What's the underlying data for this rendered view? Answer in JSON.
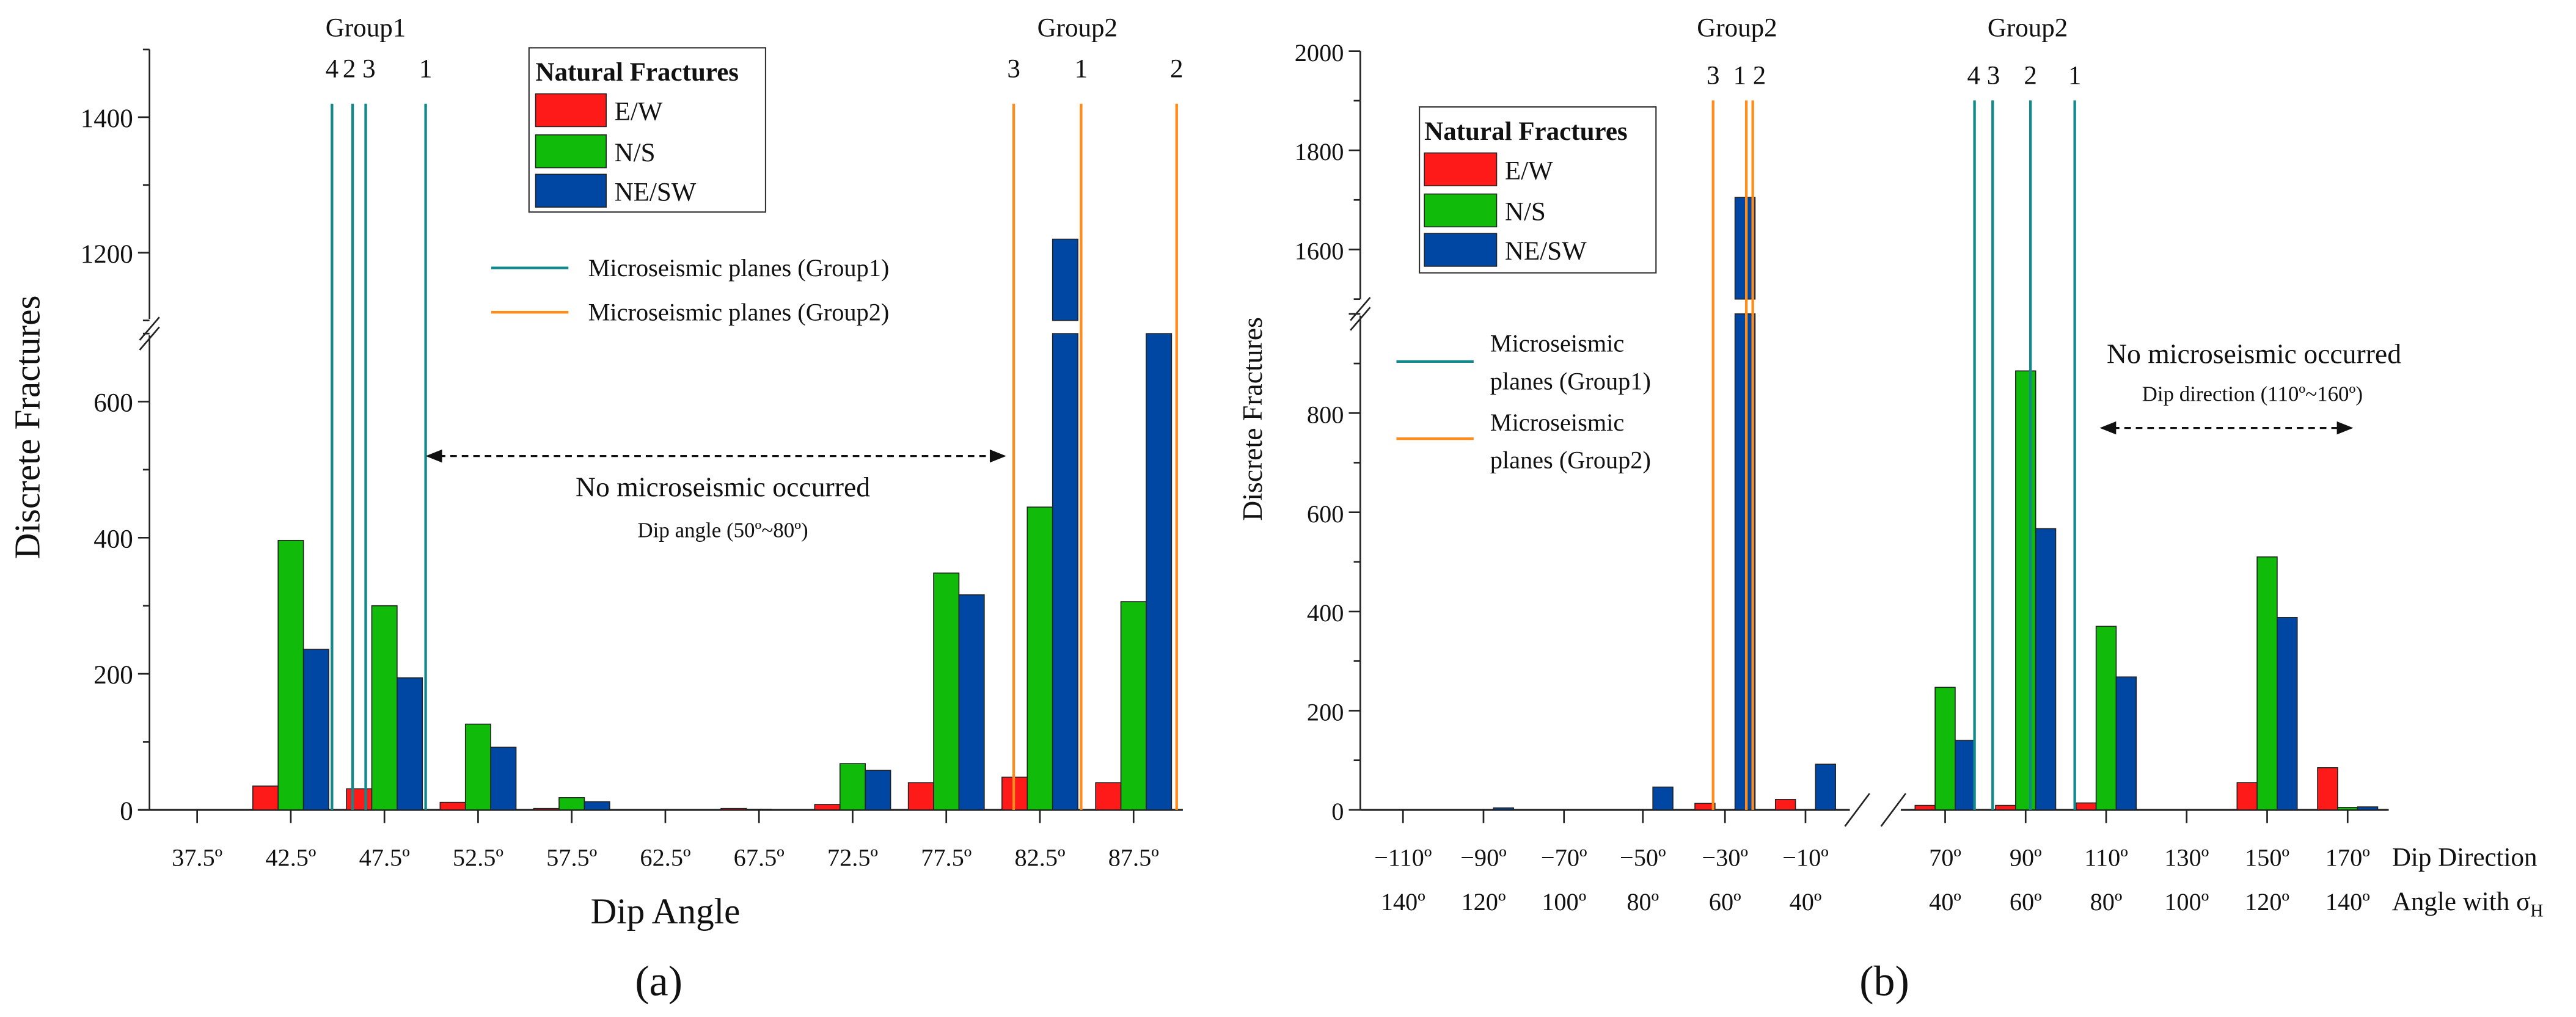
{
  "colors": {
    "ew": "#ff1a1a",
    "ns": "#11bb0a",
    "nesw": "#0047a3",
    "group1": "#128a8c",
    "group2": "#ff8c1a"
  },
  "chart_data": [
    {
      "type": "bar",
      "panel_label": "(a)",
      "xlabel": "Dip Angle",
      "ylabel": "Discrete Fractures",
      "categories": [
        "37.5º",
        "42.5º",
        "47.5º",
        "52.5º",
        "57.5º",
        "62.5º",
        "67.5º",
        "72.5º",
        "77.5º",
        "82.5º",
        "87.5º"
      ],
      "category_values": [
        37.5,
        42.5,
        47.5,
        52.5,
        57.5,
        62.5,
        67.5,
        72.5,
        77.5,
        82.5,
        87.5
      ],
      "ylim": [
        0,
        1500
      ],
      "y_break": [
        700,
        1100
      ],
      "yticks": [
        "0",
        "200",
        "400",
        "600",
        "1200",
        "1400"
      ],
      "ytick_values": [
        0,
        200,
        400,
        600,
        1200,
        1400
      ],
      "series": [
        {
          "name": "E/W",
          "values": [
            0,
            35,
            31,
            11,
            2,
            0,
            2,
            8,
            40,
            48,
            40
          ]
        },
        {
          "name": "N/S",
          "values": [
            0,
            396,
            300,
            126,
            18,
            0,
            1,
            68,
            348,
            445,
            306
          ]
        },
        {
          "name": "NE/SW",
          "values": [
            0,
            236,
            194,
            92,
            12,
            0,
            0,
            58,
            316,
            1220,
            700
          ]
        }
      ],
      "legend_title": "Natural Fractures",
      "legend_position": "top-center",
      "line_legend": [
        "Microseismic planes (Group1)",
        "Microseismic planes (Group2)"
      ],
      "group_labels": [
        {
          "text": "Group1",
          "at": 46.5
        },
        {
          "text": "Group2",
          "at": 84.5
        }
      ],
      "planes": [
        {
          "group": 1,
          "label": "4",
          "x": 44.7
        },
        {
          "group": 1,
          "label": "2",
          "x": 45.8
        },
        {
          "group": 1,
          "label": "3",
          "x": 46.5
        },
        {
          "group": 1,
          "label": "1",
          "x": 49.7
        },
        {
          "group": 2,
          "label": "3",
          "x": 81.1
        },
        {
          "group": 2,
          "label": "1",
          "x": 84.7
        },
        {
          "group": 2,
          "label": "2",
          "x": 89.8
        }
      ],
      "annotation": {
        "text": "No microseismic occurred",
        "subtext": "Dip angle (50º~80º)",
        "range": [
          49.7,
          80.7
        ],
        "level": 520
      }
    },
    {
      "type": "bar",
      "panel_label": "(b)",
      "xlabel": "Dip Direction",
      "xlabel2_main": "Angle with σ",
      "xlabel2_sub": "H",
      "ylabel": "Discrete Fractures",
      "categories": [
        "−110º",
        "−90º",
        "−70º",
        "−50º",
        "−30º",
        "−10º",
        "70º",
        "90º",
        "110º",
        "130º",
        "150º",
        "170º"
      ],
      "categories2": [
        "140º",
        "120º",
        "100º",
        "80º",
        "60º",
        "40º",
        "40º",
        "60º",
        "80º",
        "100º",
        "120º",
        "140º"
      ],
      "category_values": [
        -110,
        -90,
        -70,
        -50,
        -30,
        -10,
        70,
        90,
        110,
        130,
        150,
        170
      ],
      "ylim": [
        0,
        2000
      ],
      "y_break": [
        1000,
        1500
      ],
      "yticks": [
        "0",
        "200",
        "400",
        "600",
        "800",
        "1600",
        "1800",
        "2000"
      ],
      "ytick_values": [
        0,
        200,
        400,
        600,
        800,
        1600,
        1800,
        2000
      ],
      "series": [
        {
          "name": "E/W",
          "values": [
            0,
            0,
            0,
            0,
            13,
            21,
            9,
            9,
            14,
            0,
            55,
            85
          ]
        },
        {
          "name": "N/S",
          "values": [
            0,
            0,
            0,
            0,
            0,
            0,
            247,
            885,
            370,
            0,
            510,
            5
          ]
        },
        {
          "name": "NE/SW",
          "values": [
            0,
            4,
            0,
            46,
            1705,
            92,
            140,
            567,
            268,
            0,
            388,
            6
          ]
        }
      ],
      "legend_title": "Natural Fractures",
      "legend_position": "top-left",
      "line_legend": [
        [
          "Microseismic",
          "planes (Group1)"
        ],
        [
          "Microseismic",
          "planes (Group2)"
        ]
      ],
      "group_labels": [
        {
          "text": "Group2",
          "at": -27
        },
        {
          "text": "Group2",
          "at": 90.5
        }
      ],
      "planes": [
        {
          "group": 2,
          "label": "3",
          "x": -32.9
        },
        {
          "group": 2,
          "label": "1",
          "x": -24.7
        },
        {
          "group": 2,
          "label": "2",
          "x": -23.1
        },
        {
          "group": 1,
          "label": "4",
          "x": 77.3
        },
        {
          "group": 1,
          "label": "3",
          "x": 81.8
        },
        {
          "group": 1,
          "label": "2",
          "x": 91.2
        },
        {
          "group": 1,
          "label": "1",
          "x": 102.2
        }
      ],
      "annotation": {
        "text": "No microseismic occurred",
        "subtext": "Dip direction (110º~160º)",
        "range": [
          108.4,
          171.4
        ],
        "level": 770
      }
    }
  ]
}
